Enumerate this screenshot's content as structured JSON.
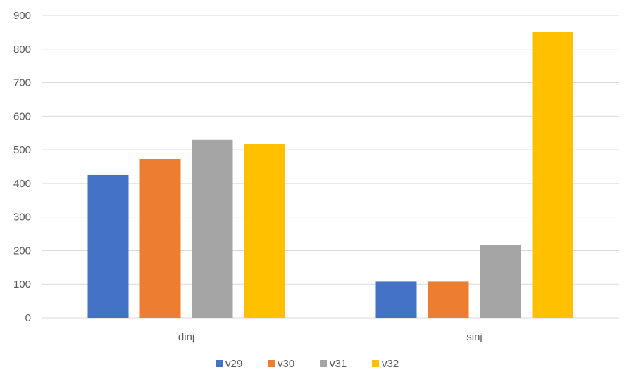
{
  "chart_data": {
    "type": "bar",
    "title": "",
    "xlabel": "",
    "ylabel": "",
    "categories": [
      "dinj",
      "sinj"
    ],
    "series": [
      {
        "name": "v29",
        "color": "#4472C4",
        "values": [
          425,
          108
        ]
      },
      {
        "name": "v30",
        "color": "#ED7D31",
        "values": [
          473,
          108
        ]
      },
      {
        "name": "v31",
        "color": "#A5A5A5",
        "values": [
          530,
          217
        ]
      },
      {
        "name": "v32",
        "color": "#FFC000",
        "values": [
          517,
          850
        ]
      }
    ],
    "ylim": [
      0,
      900
    ],
    "yticks": [
      0,
      100,
      200,
      300,
      400,
      500,
      600,
      700,
      800,
      900
    ],
    "grid": true,
    "legend": "bottom"
  }
}
